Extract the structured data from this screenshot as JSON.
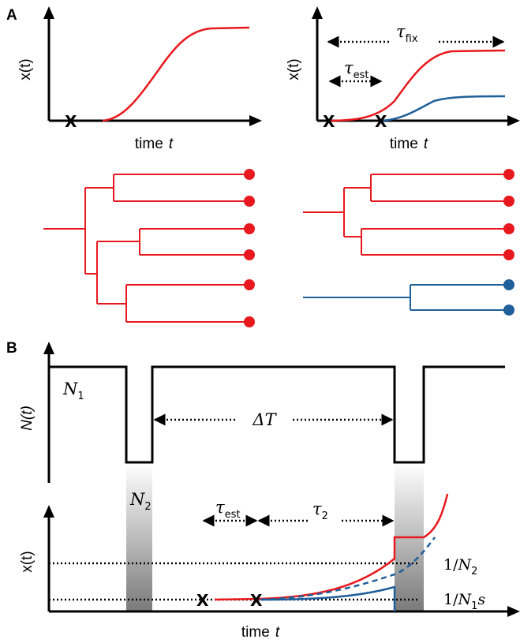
{
  "colors": {
    "black": "#000000",
    "red": "#e8191e",
    "blue": "#1f5f9a"
  },
  "panel_a": {
    "label": "A",
    "left_plot": {
      "ylabel": "x(t)",
      "xlabel_word": "time",
      "xlabel_var": "t",
      "marker": "X"
    },
    "right_plot": {
      "ylabel": "x(t)",
      "xlabel_word": "time",
      "xlabel_var": "t",
      "tau_fix": {
        "symbol": "τ",
        "sub": "fix"
      },
      "tau_est": {
        "symbol": "τ",
        "sub": "est"
      },
      "marker": "X"
    }
  },
  "panel_b": {
    "label": "B",
    "top_plot": {
      "ylabel": "N(t)",
      "n1": {
        "symbol": "N",
        "sub": "1"
      },
      "n2": {
        "symbol": "N",
        "sub": "2"
      },
      "delta_t": "ΔT"
    },
    "bottom_plot": {
      "ylabel": "x(t)",
      "xlabel_word": "time",
      "xlabel_var": "t",
      "tau_est": {
        "symbol": "τ",
        "sub": "est"
      },
      "tau_2": {
        "symbol": "τ",
        "sub": "2"
      },
      "line_upper": {
        "pre": "1/",
        "var": "N",
        "sub": "2"
      },
      "line_lower": {
        "pre": "1/",
        "var": "N",
        "sub": "1",
        "post": "s"
      },
      "marker": "X"
    }
  }
}
